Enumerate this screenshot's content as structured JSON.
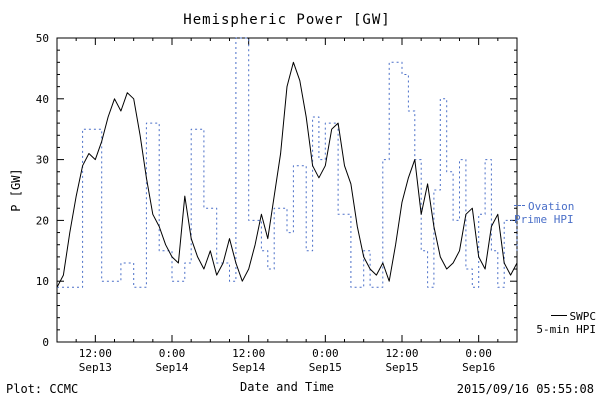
{
  "title": "Hemispheric Power [GW]",
  "footer": {
    "left": "Plot: CCMC",
    "right": "2015/09/16 05:55:08"
  },
  "chart_data": {
    "type": "line",
    "title": "Hemispheric Power [GW]",
    "xlabel": "Date and Time",
    "ylabel": "P [GW]",
    "ylim": [
      0,
      50
    ],
    "y_ticks": [
      0,
      10,
      20,
      30,
      40,
      50
    ],
    "y_minor": 2,
    "xlim_hours": [
      6,
      78
    ],
    "x_minor_hours": 3,
    "x_ticks": [
      {
        "hour": 12,
        "time": "12:00",
        "date": "Sep13"
      },
      {
        "hour": 24,
        "time": "0:00",
        "date": "Sep14"
      },
      {
        "hour": 36,
        "time": "12:00",
        "date": "Sep14"
      },
      {
        "hour": 48,
        "time": "0:00",
        "date": "Sep15"
      },
      {
        "hour": 60,
        "time": "12:00",
        "date": "Sep15"
      },
      {
        "hour": 72,
        "time": "0:00",
        "date": "Sep16"
      }
    ],
    "grid": false,
    "legend_position": "right-outside",
    "series": [
      {
        "name": "Ovation Prime HPI",
        "color": "#4a6fc8",
        "style": "dotted-step",
        "step": true,
        "dash": "2,3",
        "x": [
          6,
          10,
          13,
          16,
          18,
          20,
          22,
          24,
          26,
          27,
          29,
          31,
          33,
          34,
          36,
          38,
          39,
          40,
          42,
          43,
          45,
          46,
          47,
          48,
          50,
          52,
          54,
          55,
          57,
          58,
          60,
          61,
          62,
          63,
          64,
          65,
          66,
          67,
          68,
          69,
          70,
          71,
          72,
          73,
          74,
          75,
          76,
          78
        ],
        "y": [
          9,
          35,
          10,
          13,
          9,
          36,
          15,
          10,
          13,
          35,
          22,
          13,
          10,
          50,
          20,
          15,
          12,
          22,
          18,
          29,
          15,
          37,
          30,
          36,
          21,
          9,
          15,
          9,
          30,
          46,
          44,
          38,
          30,
          15,
          9,
          25,
          40,
          28,
          20,
          30,
          12,
          9,
          21,
          30,
          15,
          9,
          20,
          15
        ]
      },
      {
        "name": "SWPC 5-min HPI",
        "color": "#000000",
        "style": "solid",
        "step": false,
        "x_start": 6,
        "x_step": 1,
        "y": [
          9,
          11,
          18,
          24,
          29,
          31,
          30,
          33,
          37,
          40,
          38,
          41,
          40,
          34,
          27,
          21,
          19,
          16,
          14,
          13,
          24,
          17,
          14,
          12,
          15,
          11,
          13,
          17,
          13,
          10,
          12,
          16,
          21,
          17,
          24,
          31,
          42,
          46,
          43,
          37,
          29,
          27,
          29,
          35,
          36,
          29,
          26,
          19,
          14,
          12,
          11,
          13,
          10,
          16,
          23,
          27,
          30,
          21,
          26,
          19,
          14,
          12,
          13,
          15,
          21,
          22,
          14,
          12,
          19,
          21,
          13,
          11,
          13
        ]
      }
    ],
    "legend": [
      {
        "line1": "Ovation",
        "line2": "Prime HPI",
        "color": "#4a6fc8"
      },
      {
        "line1": "SWPC",
        "line2": "5-min HPI",
        "color": "#000000"
      }
    ]
  }
}
